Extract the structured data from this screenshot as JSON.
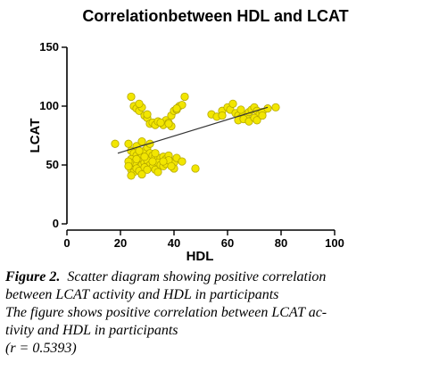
{
  "chart_data": {
    "type": "scatter",
    "title": "Correlationbetween HDL and LCAT",
    "xlabel": "HDL",
    "ylabel": "LCAT",
    "xlim": [
      0,
      100
    ],
    "ylim": [
      0,
      150
    ],
    "xticks": [
      "0",
      "20",
      "40",
      "60",
      "80",
      "100"
    ],
    "yticks": [
      "0",
      "50",
      "100",
      "150"
    ],
    "grid": false,
    "point_color": "#f2e600",
    "point_edge_color": "#b5a800",
    "trend_line": {
      "x": [
        19,
        75
      ],
      "y": [
        60,
        99
      ]
    },
    "points": [
      [
        18,
        68
      ],
      [
        24,
        108
      ],
      [
        25,
        100
      ],
      [
        26,
        98
      ],
      [
        27,
        96
      ],
      [
        28,
        99
      ],
      [
        29,
        92
      ],
      [
        30,
        90
      ],
      [
        31,
        85
      ],
      [
        32,
        86
      ],
      [
        33,
        84
      ],
      [
        34,
        87
      ],
      [
        36,
        84
      ],
      [
        37,
        88
      ],
      [
        38,
        86
      ],
      [
        39,
        92
      ],
      [
        40,
        96
      ],
      [
        41,
        97
      ],
      [
        42,
        100
      ],
      [
        43,
        101
      ],
      [
        44,
        108
      ],
      [
        39,
        83
      ],
      [
        35,
        86
      ],
      [
        30,
        93
      ],
      [
        27,
        102
      ],
      [
        38,
        85
      ],
      [
        41,
        98
      ],
      [
        23,
        68
      ],
      [
        24,
        62
      ],
      [
        25,
        60
      ],
      [
        26,
        58
      ],
      [
        27,
        56
      ],
      [
        28,
        59
      ],
      [
        29,
        62
      ],
      [
        30,
        65
      ],
      [
        31,
        60
      ],
      [
        32,
        58
      ],
      [
        33,
        57
      ],
      [
        34,
        55
      ],
      [
        35,
        56
      ],
      [
        36,
        57
      ],
      [
        37,
        55
      ],
      [
        38,
        58
      ],
      [
        39,
        53
      ],
      [
        40,
        52
      ],
      [
        24,
        55
      ],
      [
        25,
        52
      ],
      [
        26,
        50
      ],
      [
        27,
        48
      ],
      [
        28,
        50
      ],
      [
        29,
        52
      ],
      [
        30,
        54
      ],
      [
        31,
        50
      ],
      [
        32,
        48
      ],
      [
        33,
        46
      ],
      [
        34,
        52
      ],
      [
        35,
        50
      ],
      [
        36,
        49
      ],
      [
        37,
        51
      ],
      [
        38,
        54
      ],
      [
        24,
        46
      ],
      [
        25,
        44
      ],
      [
        26,
        47
      ],
      [
        27,
        45
      ],
      [
        28,
        42
      ],
      [
        29,
        48
      ],
      [
        30,
        46
      ],
      [
        34,
        44
      ],
      [
        24,
        41
      ],
      [
        26,
        66
      ],
      [
        28,
        70
      ],
      [
        31,
        68
      ],
      [
        29,
        57
      ],
      [
        33,
        60
      ],
      [
        36,
        53
      ],
      [
        41,
        56
      ],
      [
        43,
        53
      ],
      [
        48,
        47
      ],
      [
        40,
        47
      ],
      [
        26,
        55
      ],
      [
        27,
        62
      ],
      [
        23,
        53
      ],
      [
        23,
        49
      ],
      [
        32,
        53
      ],
      [
        39,
        49
      ],
      [
        54,
        93
      ],
      [
        56,
        91
      ],
      [
        58,
        96
      ],
      [
        60,
        99
      ],
      [
        61,
        97
      ],
      [
        62,
        102
      ],
      [
        63,
        94
      ],
      [
        64,
        92
      ],
      [
        65,
        90
      ],
      [
        66,
        93
      ],
      [
        67,
        91
      ],
      [
        68,
        95
      ],
      [
        69,
        97
      ],
      [
        70,
        99
      ],
      [
        71,
        96
      ],
      [
        72,
        93
      ],
      [
        73,
        95
      ],
      [
        75,
        98
      ],
      [
        78,
        99
      ],
      [
        64,
        88
      ],
      [
        66,
        89
      ],
      [
        68,
        87
      ],
      [
        70,
        90
      ],
      [
        71,
        88
      ],
      [
        73,
        92
      ],
      [
        65,
        97
      ],
      [
        58,
        92
      ]
    ]
  },
  "caption": {
    "figure_label": "Figure 2.",
    "line1_rest": "Scatter diagram showing positive correlation",
    "line2": "between LCAT activity and HDL in participants",
    "line3": "The figure shows positive correlation between LCAT ac-",
    "line4": "tivity and HDL in participants",
    "line5": "(r = 0.5393)"
  }
}
